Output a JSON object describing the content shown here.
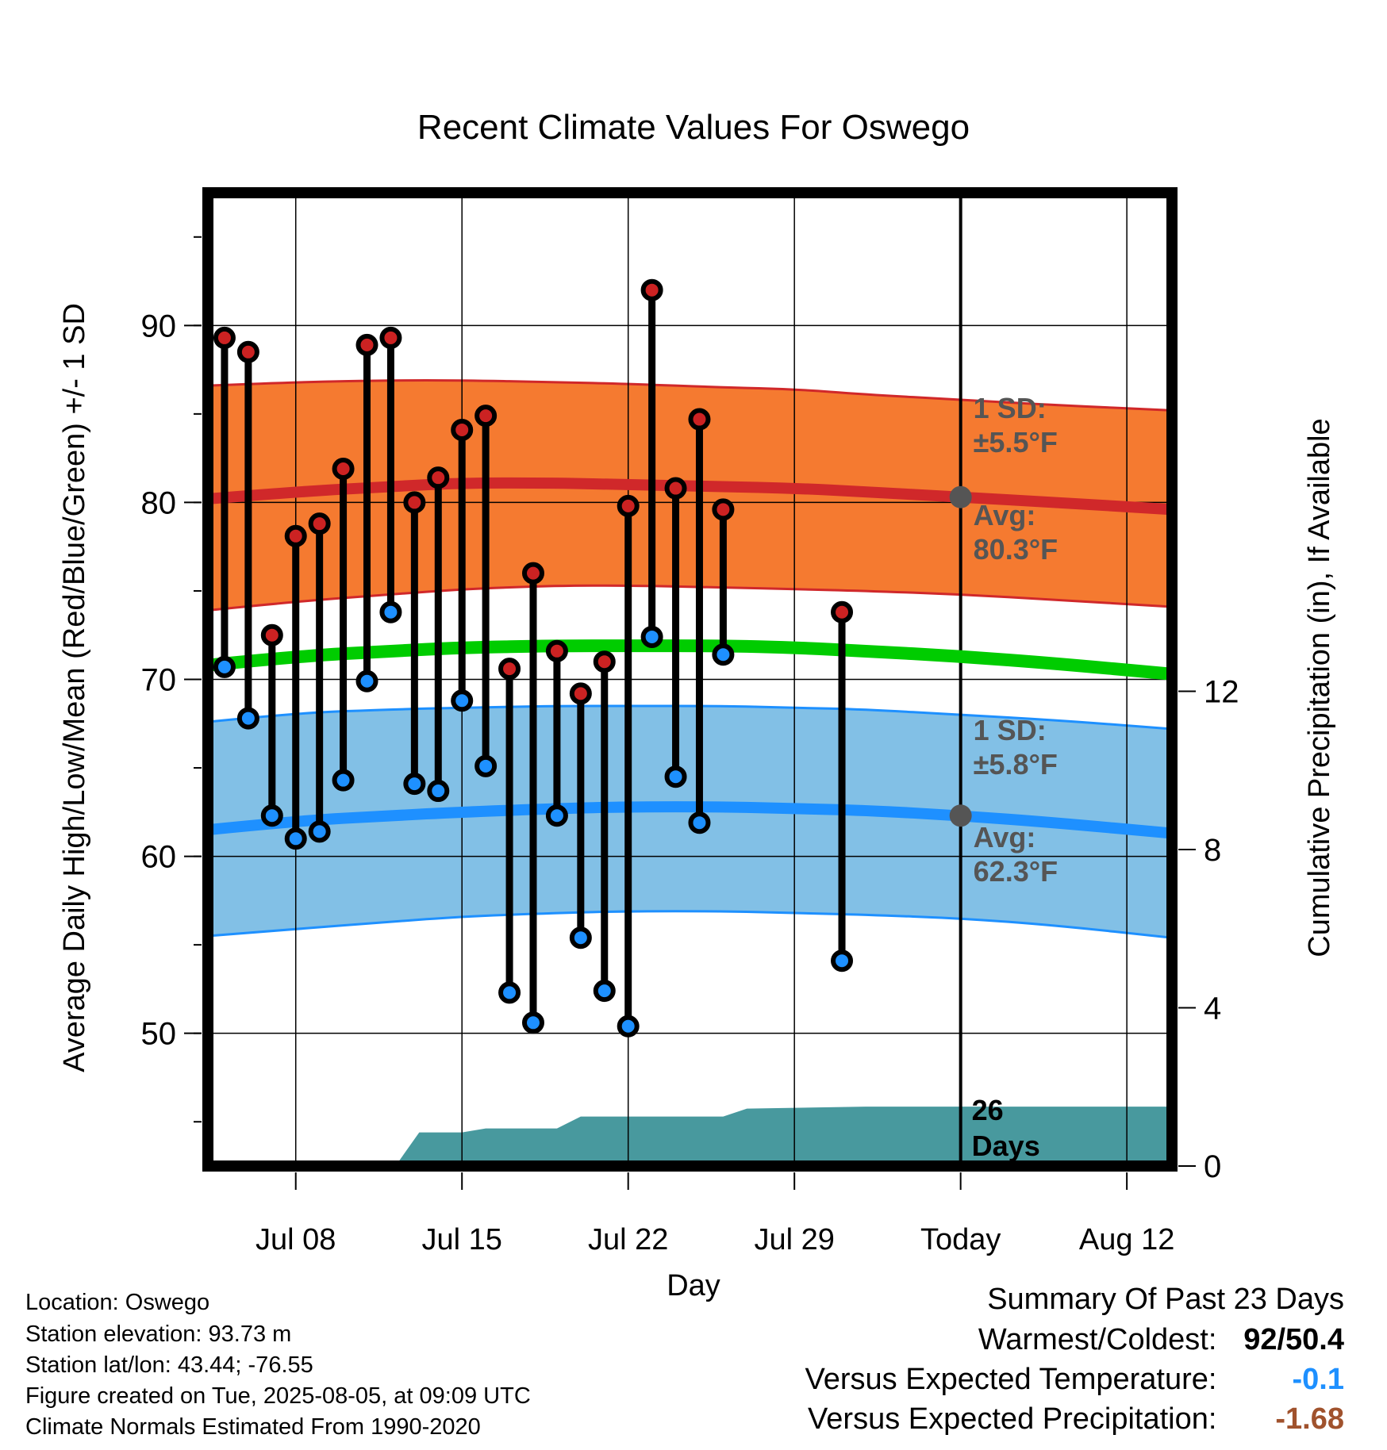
{
  "title": "Recent Climate Values For Oswego",
  "xlabel": "Day",
  "ylabel_left": "Average Daily High/Low/Mean (Red/Blue/Green) +/- 1 SD",
  "ylabel_right": "Cumulative Precipitation (in), If Available",
  "colors": {
    "high_band": "#f57a30",
    "high_mean": "#d0282a",
    "high_edge": "#d0282a",
    "low_band": "#82c0e6",
    "low_mean": "#1e90ff",
    "low_edge": "#1e90ff",
    "mean_line": "#00cc00",
    "precip": "#48999e",
    "high_dot": "#cc2222",
    "low_dot": "#1e90ff",
    "annot": "#555555",
    "vs_temp": "#1e90ff",
    "vs_precip": "#a0522d"
  },
  "annotations": {
    "high_sd_1": "1 SD:",
    "high_sd_2": "±5.5°F",
    "high_avg_1": "Avg:",
    "high_avg_2": "80.3°F",
    "low_sd_1": "1 SD:",
    "low_sd_2": "±5.8°F",
    "low_avg_1": "Avg:",
    "low_avg_2": "62.3°F",
    "days_1": "26",
    "days_2": "Days"
  },
  "info": [
    "Location: Oswego",
    "Station elevation: 93.73 m",
    "Station lat/lon: 43.44; -76.55",
    "Figure created on Tue, 2025-08-05, at 09:09 UTC",
    "Climate Normals Estimated From 1990-2020"
  ],
  "summary": {
    "heading": "Summary Of Past 23 Days",
    "warm_cold_label": "Warmest/Coldest:",
    "warm_cold_value": "92/50.4",
    "vs_temp_label": "Versus Expected Temperature:",
    "vs_temp_value": "-0.1",
    "vs_precip_label": "Versus Expected Precipitation:",
    "vs_precip_value": "-1.68"
  },
  "chart_data": {
    "type": "line",
    "x_domain_day": [
      4.3,
      44.9
    ],
    "x_ticks": [
      {
        "day": 8,
        "label": "Jul 08"
      },
      {
        "day": 15,
        "label": "Jul 15"
      },
      {
        "day": 22,
        "label": "Jul 22"
      },
      {
        "day": 29,
        "label": "Jul 29"
      },
      {
        "day": 36,
        "label": "Today"
      },
      {
        "day": 43,
        "label": "Aug 12"
      }
    ],
    "today_day": 36,
    "ylim_left": [
      42.5,
      97.5
    ],
    "y_ticks_left": [
      50,
      60,
      70,
      80,
      90
    ],
    "ylim_right": [
      0,
      24.6
    ],
    "y_ticks_right": [
      0,
      4,
      8,
      12
    ],
    "normals": {
      "day": [
        4.3,
        8,
        12,
        15,
        19,
        22,
        26,
        29,
        32,
        36,
        40,
        44.9
      ],
      "high_mean": [
        80.2,
        80.6,
        80.9,
        81.1,
        81.1,
        81.0,
        80.9,
        80.8,
        80.6,
        80.3,
        80.0,
        79.6
      ],
      "high_upper": [
        86.6,
        86.8,
        86.9,
        86.9,
        86.8,
        86.7,
        86.5,
        86.4,
        86.1,
        85.8,
        85.5,
        85.2
      ],
      "high_lower": [
        73.9,
        74.4,
        74.8,
        75.1,
        75.3,
        75.3,
        75.2,
        75.1,
        75.0,
        74.8,
        74.5,
        74.1
      ],
      "low_mean": [
        61.5,
        62.0,
        62.3,
        62.5,
        62.7,
        62.8,
        62.8,
        62.7,
        62.6,
        62.3,
        61.9,
        61.3
      ],
      "low_upper": [
        67.6,
        68.1,
        68.3,
        68.4,
        68.5,
        68.5,
        68.5,
        68.4,
        68.3,
        68.0,
        67.7,
        67.2
      ],
      "low_lower": [
        55.5,
        55.9,
        56.3,
        56.6,
        56.8,
        56.9,
        56.9,
        56.8,
        56.7,
        56.5,
        56.1,
        55.4
      ],
      "mean": [
        70.8,
        71.3,
        71.6,
        71.8,
        71.9,
        71.9,
        71.9,
        71.8,
        71.6,
        71.3,
        70.9,
        70.3
      ]
    },
    "observed": {
      "day": [
        5,
        6,
        7,
        8,
        9,
        10,
        11,
        12,
        13,
        14,
        15,
        16,
        17,
        18,
        19,
        20,
        21,
        22,
        23,
        24,
        25,
        26,
        27,
        31
      ],
      "high": [
        89.3,
        88.5,
        72.5,
        78.1,
        78.8,
        81.9,
        88.9,
        89.3,
        80.0,
        81.4,
        84.1,
        84.9,
        70.6,
        76.0,
        71.6,
        69.2,
        71.0,
        79.8,
        92.0,
        80.8,
        84.7,
        79.6,
        null,
        73.8
      ],
      "low": [
        70.7,
        67.8,
        62.3,
        61.0,
        61.4,
        64.3,
        69.9,
        73.8,
        64.1,
        63.7,
        68.8,
        65.1,
        52.3,
        50.6,
        62.3,
        55.4,
        52.4,
        50.4,
        72.4,
        64.5,
        61.9,
        71.4,
        null,
        54.1
      ]
    },
    "precip": {
      "day": [
        4.3,
        12.2,
        13.2,
        15.0,
        16.0,
        19.0,
        20.0,
        26.0,
        27.0,
        32.0,
        44.9
      ],
      "value": [
        0,
        0,
        0.85,
        0.85,
        0.95,
        0.95,
        1.25,
        1.25,
        1.45,
        1.5,
        1.5
      ]
    }
  }
}
